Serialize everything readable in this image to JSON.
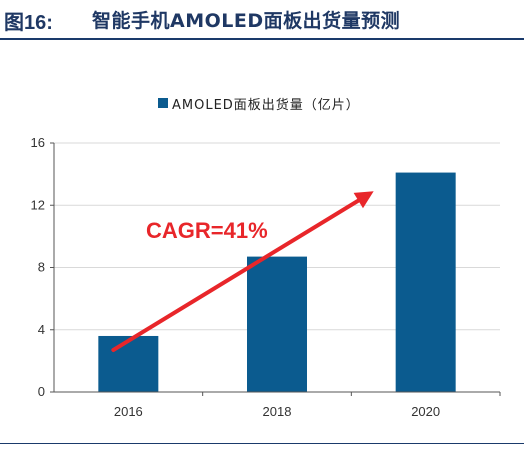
{
  "figure": {
    "number": "图16:",
    "title": "智能手机AMOLED面板出货量预测"
  },
  "chart_data": {
    "type": "bar",
    "categories": [
      "2016",
      "2018",
      "2020"
    ],
    "series": [
      {
        "name": "AMOLED面板出货量（亿片）",
        "values": [
          3.6,
          8.7,
          14.1
        ],
        "color": "#0b5b8f"
      }
    ],
    "ylim": [
      0,
      16
    ],
    "yticks": [
      "0",
      "4",
      "8",
      "12",
      "16"
    ],
    "grid": true,
    "legend_position": "top-center",
    "annotation": {
      "text": "CAGR=41%",
      "color": "#e8262a"
    }
  }
}
